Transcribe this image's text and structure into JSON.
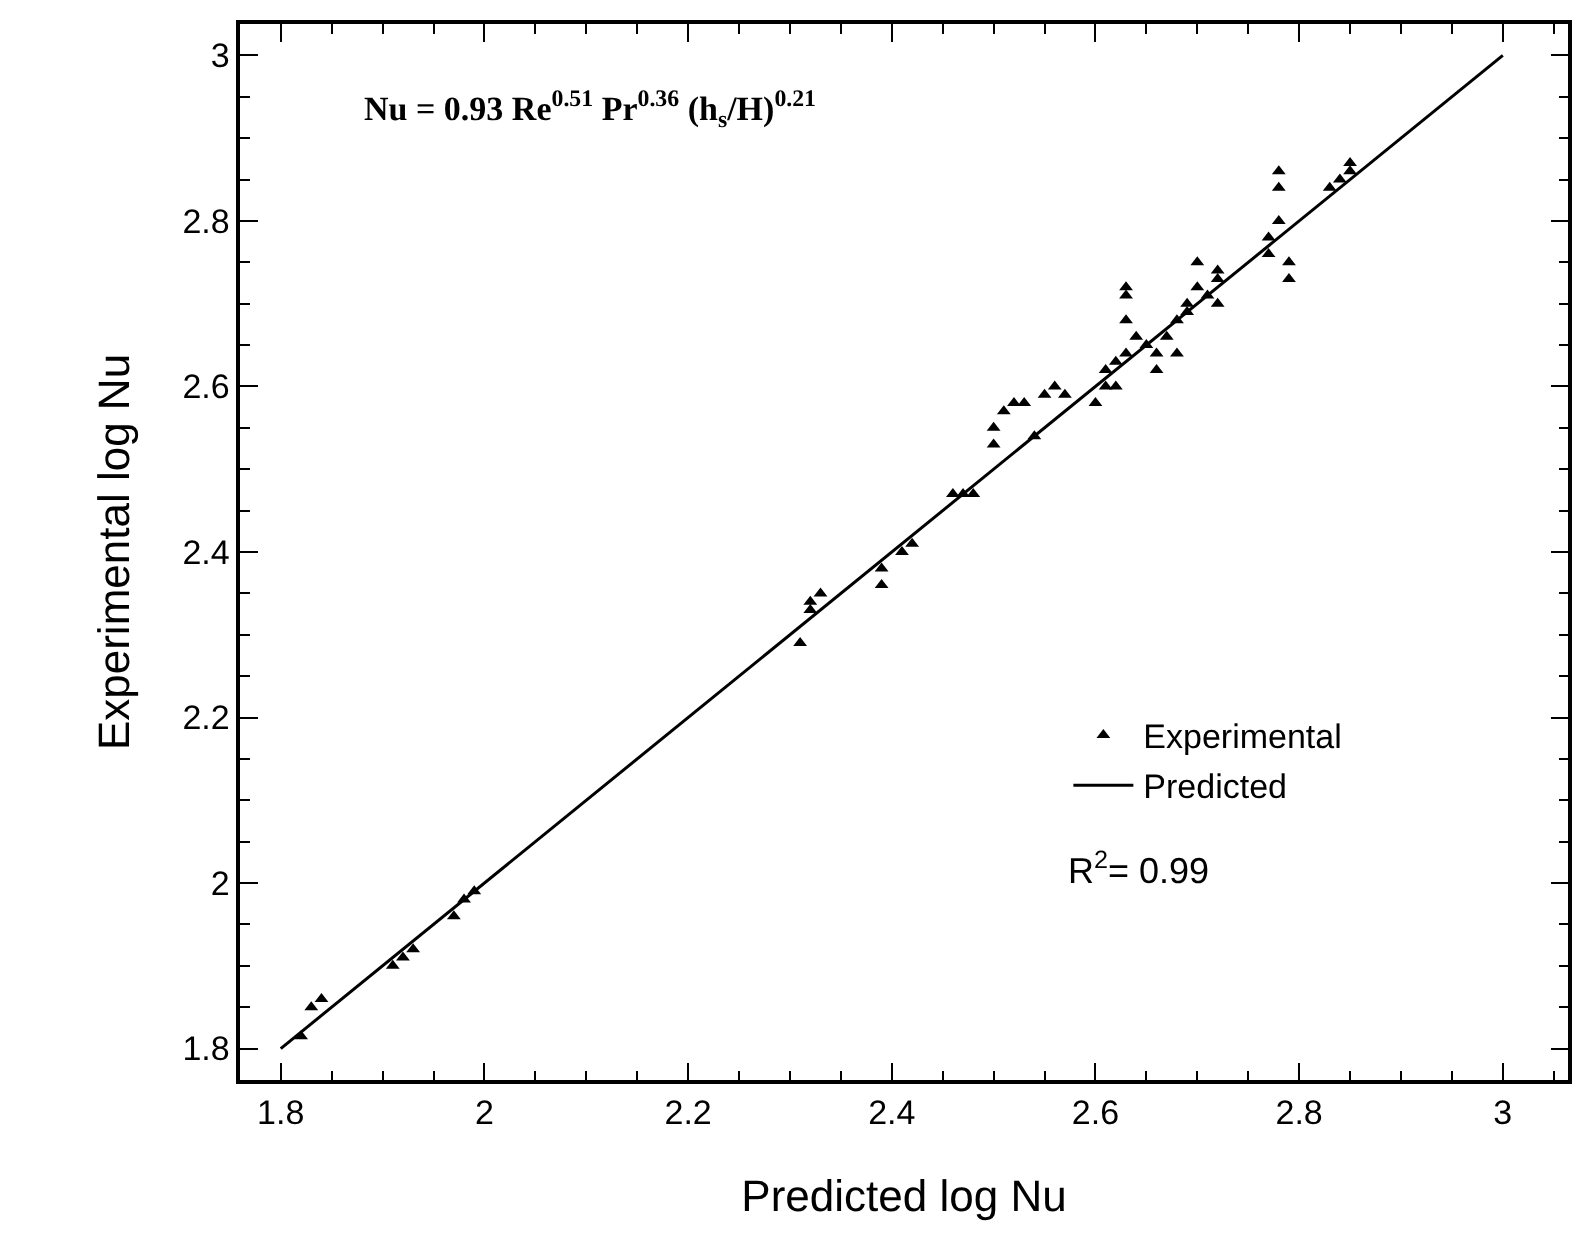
{
  "chart_data": {
    "type": "scatter",
    "xlabel": "Predicted log Nu",
    "ylabel": "Experimental log Nu",
    "annotations": [
      "Nu = 0.93 Re$^{0.51}$ Pr$^{0.36}$ (h$_{s}$/H)$^{0.21}$",
      "R$^{2}$= 0.99"
    ],
    "xlim": [
      1.76,
      3.064
    ],
    "ylim": [
      1.762,
      3.038
    ],
    "xticks": [
      {
        "value": 1.8,
        "label": "1.8"
      },
      {
        "value": 2,
        "label": "2"
      },
      {
        "value": 2.2,
        "label": "2.2"
      },
      {
        "value": 2.4,
        "label": "2.4"
      },
      {
        "value": 2.6,
        "label": "2.6"
      },
      {
        "value": 2.8,
        "label": "2.8"
      },
      {
        "value": 3,
        "label": "3"
      }
    ],
    "yticks": [
      {
        "value": 1.8,
        "label": "1.8"
      },
      {
        "value": 2,
        "label": "2"
      },
      {
        "value": 2.2,
        "label": "2.2"
      },
      {
        "value": 2.4,
        "label": "2.4"
      },
      {
        "value": 2.6,
        "label": "2.6"
      },
      {
        "value": 2.8,
        "label": "2.8"
      },
      {
        "value": 3,
        "label": "3"
      }
    ],
    "grid": false,
    "legend": "right",
    "series": [
      {
        "name": "Experimental",
        "color": "#000000",
        "marker": "triangle",
        "x": [
          1.82,
          1.83,
          1.84,
          1.91,
          1.92,
          1.93,
          1.97,
          1.98,
          1.99,
          2.31,
          2.32,
          2.33,
          2.32,
          2.39,
          2.39,
          2.41,
          2.42,
          2.46,
          2.47,
          2.48,
          2.5,
          2.5,
          2.51,
          2.52,
          2.53,
          2.54,
          2.55,
          2.56,
          2.57,
          2.6,
          2.61,
          2.61,
          2.62,
          2.62,
          2.63,
          2.63,
          2.63,
          2.63,
          2.64,
          2.65,
          2.66,
          2.66,
          2.67,
          2.68,
          2.69,
          2.68,
          2.69,
          2.7,
          2.7,
          2.71,
          2.72,
          2.72,
          2.72,
          2.77,
          2.77,
          2.78,
          2.78,
          2.78,
          2.79,
          2.79,
          2.83,
          2.84,
          2.85,
          2.85
        ],
        "values": [
          1.815,
          1.85,
          1.86,
          1.9,
          1.91,
          1.92,
          1.96,
          1.98,
          1.99,
          2.29,
          2.34,
          2.35,
          2.33,
          2.36,
          2.38,
          2.4,
          2.41,
          2.47,
          2.47,
          2.47,
          2.53,
          2.55,
          2.57,
          2.58,
          2.58,
          2.54,
          2.59,
          2.6,
          2.59,
          2.58,
          2.6,
          2.62,
          2.63,
          2.6,
          2.64,
          2.68,
          2.71,
          2.72,
          2.66,
          2.65,
          2.62,
          2.64,
          2.66,
          2.68,
          2.69,
          2.64,
          2.7,
          2.72,
          2.75,
          2.71,
          2.7,
          2.73,
          2.74,
          2.76,
          2.78,
          2.8,
          2.84,
          2.86,
          2.75,
          2.73,
          2.84,
          2.85,
          2.86,
          2.87
        ]
      },
      {
        "name": "Predicted",
        "type": "line",
        "color": "#000000",
        "line_style": "solid",
        "marker": "none",
        "x": [
          1.8,
          3
        ],
        "values": [
          1.8,
          3
        ]
      }
    ]
  }
}
